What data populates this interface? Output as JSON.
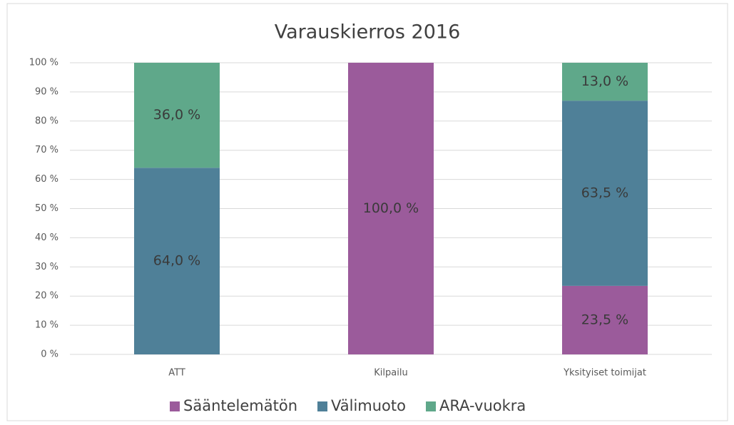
{
  "chart_data": {
    "type": "stacked_bar",
    "title": "Varauskierros 2016",
    "categories": [
      "ATT",
      "Kilpailu",
      "Yksityiset toimijat"
    ],
    "series": [
      {
        "name": "Sääntelemätön",
        "color": "#9b5b9b",
        "values": [
          0,
          100,
          23.5
        ],
        "value_labels": [
          null,
          "100,0 %",
          "23,5 %"
        ]
      },
      {
        "name": "Välimuoto",
        "color": "#4f8098",
        "values": [
          64,
          0,
          63.5
        ],
        "value_labels": [
          "64,0 %",
          null,
          "63,5 %"
        ]
      },
      {
        "name": "ARA-vuokra",
        "color": "#5fa88a",
        "values": [
          36,
          0,
          13
        ],
        "value_labels": [
          "36,0 %",
          null,
          "13,0 %"
        ]
      }
    ],
    "ylim": [
      0,
      100
    ],
    "yticks": [
      {
        "value": 0,
        "label": "0 %"
      },
      {
        "value": 10,
        "label": "10 %"
      },
      {
        "value": 20,
        "label": "20 %"
      },
      {
        "value": 30,
        "label": "30 %"
      },
      {
        "value": 40,
        "label": "40 %"
      },
      {
        "value": 50,
        "label": "50 %"
      },
      {
        "value": 60,
        "label": "60 %"
      },
      {
        "value": 70,
        "label": "70 %"
      },
      {
        "value": 80,
        "label": "80 %"
      },
      {
        "value": 90,
        "label": "90 %"
      },
      {
        "value": 100,
        "label": "100 %"
      }
    ],
    "grid": true,
    "legend": "bottom"
  }
}
